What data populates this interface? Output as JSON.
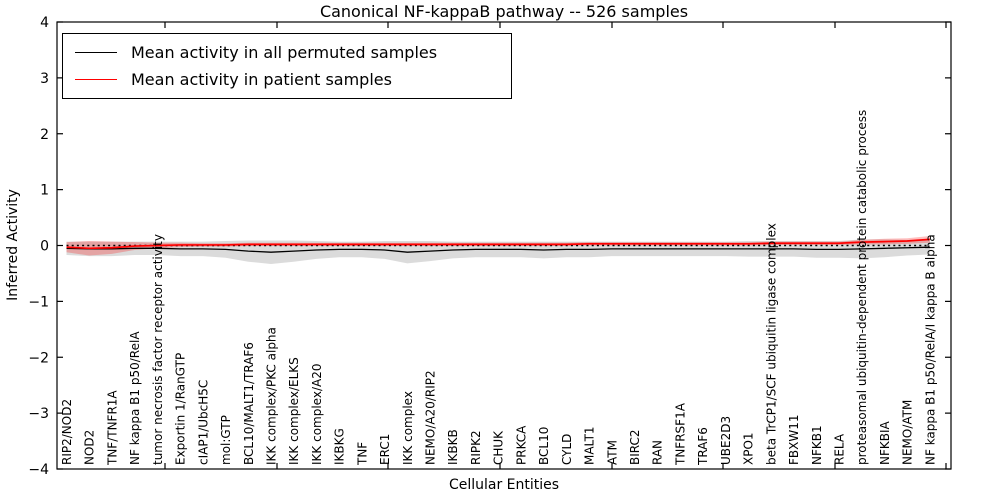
{
  "title": "Canonical NF-kappaB pathway -- 526 samples",
  "axes": {
    "xlabel": "Cellular Entities",
    "ylabel": "Inferred Activity"
  },
  "legend": {
    "items": [
      {
        "label": "Mean activity in all permuted samples",
        "color": "#000000"
      },
      {
        "label": "Mean activity in patient samples",
        "color": "#ff0000"
      }
    ]
  },
  "colors": {
    "permuted_line": "#000000",
    "patient_line": "#ff0000",
    "permuted_band": "rgba(0,0,0,0.14)",
    "patient_band": "rgba(255,0,0,0.25)",
    "axis": "#000000"
  },
  "chart_data": {
    "type": "line",
    "title": "Canonical NF-kappaB pathway -- 526 samples",
    "xlabel": "Cellular Entities",
    "ylabel": "Inferred Activity",
    "ylim": [
      -4,
      4
    ],
    "yticks": [
      -4,
      -3,
      -2,
      -1,
      0,
      1,
      2,
      3,
      4
    ],
    "grid": false,
    "legend_position": "upper left",
    "reference_line": {
      "y": 0,
      "style": "dotted",
      "color": "#000000"
    },
    "categories": [
      "RIP2/NOD2",
      "NOD2",
      "TNF/TNFR1A",
      "NF kappa B1 p50/RelA",
      "tumor necrosis factor receptor activity",
      "Exportin 1/RanGTP",
      "cIAP1/UbcH5C",
      "mol:GTP",
      "BCL10/MALT1/TRAF6",
      "IKK complex/PKC alpha",
      "IKK complex/ELKS",
      "IKK complex/A20",
      "IKBKG",
      "TNF",
      "ERC1",
      "IKK complex",
      "NEMO/A20/RIP2",
      "IKBKB",
      "RIPK2",
      "CHUK",
      "PRKCA",
      "BCL10",
      "CYLD",
      "MALT1",
      "ATM",
      "BIRC2",
      "RAN",
      "TNFRSF1A",
      "TRAF6",
      "UBE2D3",
      "XPO1",
      "beta TrCP1/SCF ubiquitin ligase complex",
      "FBXW11",
      "NFKB1",
      "RELA",
      "proteasomal ubiquitin-dependent protein catabolic process",
      "NFKBIA",
      "NEMO/ATM",
      "NF kappa B1 p50/RelA/I kappa B alpha"
    ],
    "series": [
      {
        "name": "Mean activity in all permuted samples",
        "color": "#000000",
        "values": [
          -0.05,
          -0.06,
          -0.06,
          -0.05,
          -0.05,
          -0.06,
          -0.06,
          -0.07,
          -0.1,
          -0.12,
          -0.1,
          -0.08,
          -0.07,
          -0.07,
          -0.08,
          -0.12,
          -0.1,
          -0.08,
          -0.07,
          -0.07,
          -0.07,
          -0.08,
          -0.07,
          -0.07,
          -0.06,
          -0.06,
          -0.06,
          -0.06,
          -0.06,
          -0.06,
          -0.06,
          -0.06,
          -0.06,
          -0.07,
          -0.07,
          -0.06,
          -0.05,
          -0.04,
          -0.03
        ],
        "band_halfwidth": [
          0.12,
          0.13,
          0.13,
          0.12,
          0.12,
          0.13,
          0.13,
          0.15,
          0.19,
          0.21,
          0.19,
          0.16,
          0.14,
          0.14,
          0.16,
          0.2,
          0.18,
          0.15,
          0.14,
          0.14,
          0.14,
          0.15,
          0.14,
          0.14,
          0.13,
          0.13,
          0.13,
          0.13,
          0.13,
          0.13,
          0.14,
          0.14,
          0.14,
          0.15,
          0.15,
          0.17,
          0.16,
          0.14,
          0.13
        ]
      },
      {
        "name": "Mean activity in patient samples",
        "color": "#ff0000",
        "values": [
          -0.03,
          -0.05,
          -0.04,
          -0.01,
          0.0,
          0.01,
          0.01,
          0.01,
          0.02,
          0.02,
          0.02,
          0.02,
          0.02,
          0.02,
          0.02,
          0.02,
          0.02,
          0.02,
          0.02,
          0.02,
          0.02,
          0.02,
          0.02,
          0.03,
          0.03,
          0.03,
          0.03,
          0.03,
          0.03,
          0.03,
          0.03,
          0.04,
          0.04,
          0.04,
          0.04,
          0.06,
          0.07,
          0.08,
          0.11
        ],
        "band_halfwidth": [
          0.09,
          0.13,
          0.11,
          0.07,
          0.05,
          0.04,
          0.03,
          0.03,
          0.03,
          0.03,
          0.03,
          0.03,
          0.03,
          0.03,
          0.03,
          0.03,
          0.03,
          0.03,
          0.03,
          0.03,
          0.03,
          0.03,
          0.03,
          0.03,
          0.03,
          0.03,
          0.03,
          0.03,
          0.03,
          0.03,
          0.03,
          0.03,
          0.03,
          0.03,
          0.03,
          0.04,
          0.05,
          0.05,
          0.06
        ]
      }
    ]
  }
}
